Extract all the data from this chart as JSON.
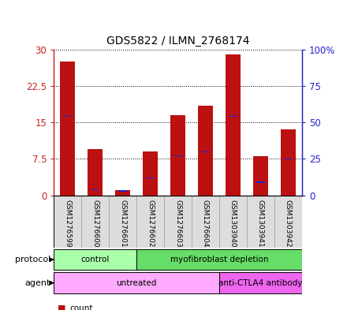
{
  "title": "GDS5822 / ILMN_2768174",
  "samples": [
    "GSM1276599",
    "GSM1276600",
    "GSM1276601",
    "GSM1276602",
    "GSM1276603",
    "GSM1276604",
    "GSM1303940",
    "GSM1303941",
    "GSM1303942"
  ],
  "counts": [
    27.5,
    9.5,
    1.0,
    9.0,
    16.5,
    18.5,
    29.0,
    8.0,
    13.5
  ],
  "percentile_ranks": [
    54,
    4,
    3,
    12,
    27,
    30,
    54,
    9,
    25
  ],
  "ylim_left": [
    0,
    30
  ],
  "ylim_right": [
    0,
    100
  ],
  "yticks_left": [
    0,
    7.5,
    15,
    22.5,
    30
  ],
  "yticks_right": [
    0,
    25,
    50,
    75,
    100
  ],
  "ytick_labels_left": [
    "0",
    "7.5",
    "15",
    "22.5",
    "30"
  ],
  "ytick_labels_right": [
    "0",
    "25",
    "50",
    "75",
    "100%"
  ],
  "bar_color_red": "#BB1111",
  "bar_color_blue": "#2222CC",
  "bar_width": 0.55,
  "blue_marker_size": 0.18,
  "protocol_color_light": "#AAFFAA",
  "protocol_color_dark": "#66DD66",
  "agent_color_untreated": "#FFAAFF",
  "agent_color_anti": "#EE66EE",
  "legend_count_color": "#BB1111",
  "legend_pct_color": "#2222CC",
  "xlabel_color_left": "#CC2222",
  "xlabel_color_right": "#2222CC",
  "sample_box_color": "#DDDDDD",
  "sample_box_edge": "#999999"
}
